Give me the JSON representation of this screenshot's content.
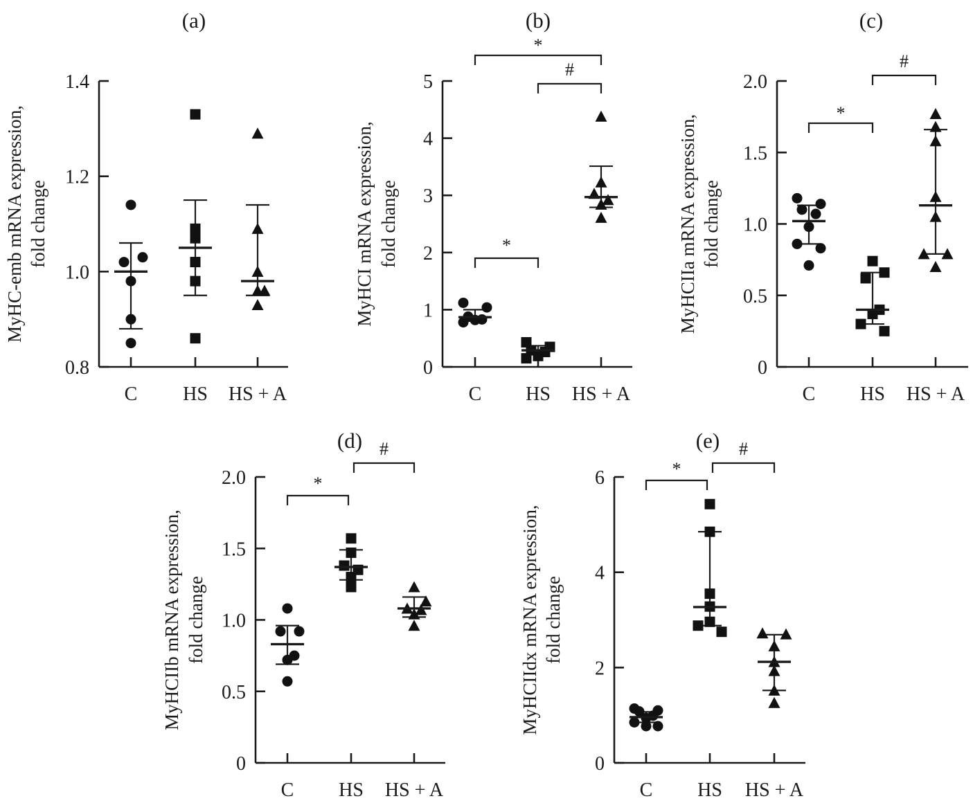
{
  "chart_data": [
    {
      "type": "scatter",
      "panel": "(a)",
      "title": "(a)",
      "xlabel": "",
      "ylabel": [
        "MyHC-emb mRNA expression,",
        "fold change"
      ],
      "categories": [
        "C",
        "HS",
        "HS + A"
      ],
      "ylim": [
        0.8,
        1.4
      ],
      "yticks": [
        0.8,
        1.0,
        1.2,
        1.4
      ],
      "ytick_labels": [
        "0.8",
        "1.0",
        "1.2",
        "1.4"
      ],
      "series": [
        {
          "name": "C",
          "marker": "circle",
          "values": [
            1.14,
            1.03,
            1.02,
            0.98,
            0.9,
            0.85
          ],
          "mean": 1.0,
          "error": [
            0.88,
            1.06
          ]
        },
        {
          "name": "HS",
          "marker": "square",
          "values": [
            1.33,
            1.09,
            1.07,
            1.02,
            0.98,
            0.86
          ],
          "mean": 1.05,
          "error": [
            0.95,
            1.15
          ]
        },
        {
          "name": "HS + A",
          "marker": "triangle",
          "values": [
            1.29,
            1.09,
            1.0,
            0.96,
            0.96,
            0.93
          ],
          "mean": 0.98,
          "error": [
            0.95,
            1.14
          ]
        }
      ],
      "significance": []
    },
    {
      "type": "scatter",
      "panel": "(b)",
      "title": "(b)",
      "xlabel": "",
      "ylabel": [
        "MyHCI mRNA expression,",
        "fold change"
      ],
      "categories": [
        "C",
        "HS",
        "HS + A"
      ],
      "ylim": [
        0,
        5
      ],
      "yticks": [
        0,
        1,
        2,
        3,
        4,
        5
      ],
      "ytick_labels": [
        "0",
        "1",
        "2",
        "3",
        "4",
        "5"
      ],
      "series": [
        {
          "name": "C",
          "marker": "circle",
          "values": [
            1.12,
            1.04,
            0.88,
            0.83,
            0.82,
            0.78
          ],
          "mean": 0.87,
          "error": [
            0.8,
            1.0
          ]
        },
        {
          "name": "HS",
          "marker": "square",
          "values": [
            0.43,
            0.35,
            0.29,
            0.26,
            0.19,
            0.15
          ],
          "mean": 0.29,
          "error": [
            0.22,
            0.37
          ]
        },
        {
          "name": "HS + A",
          "marker": "triangle",
          "values": [
            4.38,
            3.23,
            3.03,
            2.92,
            2.84,
            2.61
          ],
          "mean": 2.97,
          "error": [
            2.79,
            3.51
          ]
        }
      ],
      "significance": [
        {
          "from": "C",
          "to": "HS + A",
          "label": "*",
          "level": 0
        },
        {
          "from": "HS",
          "to": "HS + A",
          "label": "#",
          "level": 1
        },
        {
          "from": "C",
          "to": "HS",
          "label": "*",
          "level": 2
        }
      ]
    },
    {
      "type": "scatter",
      "panel": "(c)",
      "title": "(c)",
      "xlabel": "",
      "ylabel": [
        "MyHCIIa mRNA expression,",
        "fold change"
      ],
      "categories": [
        "C",
        "HS",
        "HS + A"
      ],
      "ylim": [
        0,
        2.0
      ],
      "yticks": [
        0,
        0.5,
        1.0,
        1.5,
        2.0
      ],
      "ytick_labels": [
        "0",
        "0.5",
        "1.0",
        "1.5",
        "2.0"
      ],
      "series": [
        {
          "name": "C",
          "marker": "circle",
          "values": [
            1.18,
            1.14,
            1.1,
            1.07,
            0.98,
            0.86,
            0.83,
            0.71
          ],
          "mean": 1.02,
          "error": [
            0.86,
            1.13
          ]
        },
        {
          "name": "HS",
          "marker": "square",
          "values": [
            0.74,
            0.66,
            0.62,
            0.4,
            0.37,
            0.3,
            0.25
          ],
          "mean": 0.4,
          "error": [
            0.3,
            0.66
          ]
        },
        {
          "name": "HS + A",
          "marker": "triangle",
          "values": [
            1.77,
            1.68,
            1.58,
            1.19,
            1.05,
            0.79,
            0.79,
            0.7
          ],
          "mean": 1.13,
          "error": [
            0.79,
            1.66
          ]
        }
      ],
      "significance": [
        {
          "from": "HS",
          "to": "HS + A",
          "label": "#",
          "level": 0
        },
        {
          "from": "C",
          "to": "HS",
          "label": "*",
          "level": 1
        }
      ]
    },
    {
      "type": "scatter",
      "panel": "(d)",
      "title": "(d)",
      "xlabel": "",
      "ylabel": [
        "MyHCIIb mRNA expression,",
        "fold change"
      ],
      "categories": [
        "C",
        "HS",
        "HS + A"
      ],
      "ylim": [
        0,
        2.0
      ],
      "yticks": [
        0,
        0.5,
        1.0,
        1.5,
        2.0
      ],
      "ytick_labels": [
        "0",
        "0.5",
        "1.0",
        "1.5",
        "2.0"
      ],
      "series": [
        {
          "name": "C",
          "marker": "circle",
          "values": [
            1.08,
            0.92,
            0.92,
            0.75,
            0.72,
            0.57
          ],
          "mean": 0.83,
          "error": [
            0.69,
            0.96
          ]
        },
        {
          "name": "HS",
          "marker": "square",
          "values": [
            1.57,
            1.47,
            1.38,
            1.35,
            1.3,
            1.23
          ],
          "mean": 1.37,
          "error": [
            1.28,
            1.49
          ]
        },
        {
          "name": "HS + A",
          "marker": "triangle",
          "values": [
            1.23,
            1.13,
            1.08,
            1.07,
            1.04,
            0.96
          ],
          "mean": 1.08,
          "error": [
            1.02,
            1.16
          ]
        }
      ],
      "significance": [
        {
          "from": "C",
          "to": "HS",
          "label": "*",
          "level": 0
        },
        {
          "from": "HS",
          "to": "HS + A",
          "label": "#",
          "level": 0
        }
      ]
    },
    {
      "type": "scatter",
      "panel": "(e)",
      "title": "(e)",
      "xlabel": "",
      "ylabel": [
        "MyHCIIdx mRNA expression,",
        "fold change"
      ],
      "categories": [
        "C",
        "HS",
        "HS + A"
      ],
      "ylim": [
        0,
        6
      ],
      "yticks": [
        0,
        2,
        4,
        6
      ],
      "ytick_labels": [
        "0",
        "2",
        "4",
        "6"
      ],
      "series": [
        {
          "name": "C",
          "marker": "circle",
          "values": [
            1.14,
            1.1,
            1.08,
            0.99,
            0.94,
            0.85,
            0.77,
            0.77
          ],
          "mean": 0.96,
          "error": [
            0.85,
            1.07
          ]
        },
        {
          "name": "HS",
          "marker": "square",
          "values": [
            5.43,
            4.85,
            3.55,
            3.28,
            2.96,
            2.88,
            2.75
          ],
          "mean": 3.27,
          "error": [
            2.88,
            4.85
          ]
        },
        {
          "name": "HS + A",
          "marker": "triangle",
          "values": [
            2.72,
            2.7,
            2.45,
            2.12,
            1.93,
            1.52,
            1.26
          ],
          "mean": 2.12,
          "error": [
            1.52,
            2.69
          ]
        }
      ],
      "significance": [
        {
          "from": "C",
          "to": "HS",
          "label": "*",
          "level": 0
        },
        {
          "from": "HS",
          "to": "HS + A",
          "label": "#",
          "level": 0
        }
      ]
    }
  ]
}
